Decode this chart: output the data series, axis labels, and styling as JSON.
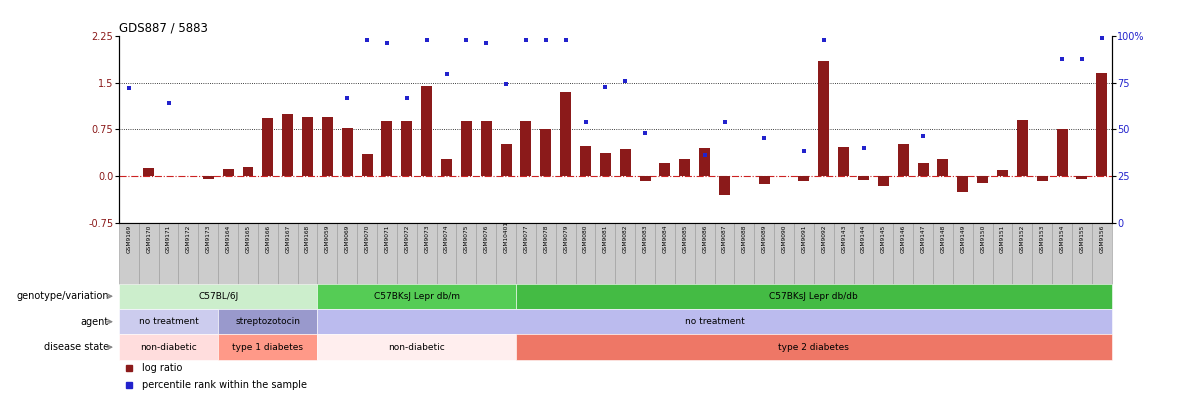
{
  "title": "GDS887 / 5883",
  "samples": [
    "GSM9169",
    "GSM9170",
    "GSM9171",
    "GSM9172",
    "GSM9173",
    "GSM9164",
    "GSM9165",
    "GSM9166",
    "GSM9167",
    "GSM9168",
    "GSM9059",
    "GSM9069",
    "GSM9070",
    "GSM9071",
    "GSM9072",
    "GSM9073",
    "GSM9074",
    "GSM9075",
    "GSM9076",
    "GSM10401",
    "GSM9077",
    "GSM9078",
    "GSM9079",
    "GSM9080",
    "GSM9081",
    "GSM9082",
    "GSM9083",
    "GSM9084",
    "GSM9085",
    "GSM9086",
    "GSM9087",
    "GSM9088",
    "GSM9089",
    "GSM9090",
    "GSM9091",
    "GSM9092",
    "GSM9143",
    "GSM9144",
    "GSM9145",
    "GSM9146",
    "GSM9147",
    "GSM9148",
    "GSM9149",
    "GSM9150",
    "GSM9151",
    "GSM9152",
    "GSM9153",
    "GSM9154",
    "GSM9155",
    "GSM9156"
  ],
  "log_ratio": [
    0.0,
    0.13,
    0.0,
    0.0,
    -0.05,
    0.12,
    0.15,
    0.93,
    1.0,
    0.95,
    0.95,
    0.78,
    0.35,
    0.88,
    0.88,
    1.45,
    0.28,
    0.88,
    0.88,
    0.52,
    0.88,
    0.75,
    1.35,
    0.48,
    0.38,
    0.43,
    -0.08,
    0.22,
    0.27,
    0.45,
    -0.3,
    0.0,
    -0.12,
    0.0,
    -0.08,
    1.85,
    0.47,
    -0.06,
    -0.15,
    0.52,
    0.22,
    0.28,
    -0.25,
    -0.1,
    0.1,
    0.9,
    -0.08,
    0.75,
    -0.05,
    1.65
  ],
  "percentile_rank_left": [
    1.42,
    null,
    1.18,
    null,
    null,
    null,
    null,
    null,
    null,
    null,
    null,
    1.25,
    2.18,
    2.14,
    1.25,
    2.18,
    1.63,
    2.18,
    2.14,
    1.48,
    2.18,
    2.18,
    2.18,
    0.87,
    1.43,
    1.53,
    0.69,
    null,
    null,
    0.34,
    0.87,
    null,
    0.61,
    null,
    0.41,
    2.18,
    null,
    0.46,
    null,
    null,
    0.64,
    null,
    null,
    null,
    null,
    null,
    null,
    1.88,
    1.88,
    2.22
  ],
  "ylim_left": [
    -0.75,
    2.25
  ],
  "ylim_right": [
    0,
    100
  ],
  "yticks_left": [
    -0.75,
    0.0,
    0.75,
    1.5,
    2.25
  ],
  "yticks_right": [
    0,
    25,
    50,
    75,
    100
  ],
  "hlines": [
    0.75,
    1.5
  ],
  "bar_color": "#8B1A1A",
  "scatter_color": "#2222CC",
  "zero_line_color": "#CC2222",
  "sample_box_color": "#CCCCCC",
  "sample_box_edge": "#999999",
  "genotype_groups": [
    {
      "label": "C57BL/6J",
      "start": 0,
      "end": 10,
      "color": "#CCEECC"
    },
    {
      "label": "C57BKsJ Lepr db/m",
      "start": 10,
      "end": 20,
      "color": "#55CC55"
    },
    {
      "label": "C57BKsJ Lepr db/db",
      "start": 20,
      "end": 50,
      "color": "#44BB44"
    }
  ],
  "agent_groups": [
    {
      "label": "no treatment",
      "start": 0,
      "end": 5,
      "color": "#CCCCEE"
    },
    {
      "label": "streptozotocin",
      "start": 5,
      "end": 10,
      "color": "#9999CC"
    },
    {
      "label": "no treatment",
      "start": 10,
      "end": 50,
      "color": "#BBBBEE"
    }
  ],
  "disease_groups": [
    {
      "label": "non-diabetic",
      "start": 0,
      "end": 5,
      "color": "#FFDDDD"
    },
    {
      "label": "type 1 diabetes",
      "start": 5,
      "end": 10,
      "color": "#FF9988"
    },
    {
      "label": "non-diabetic",
      "start": 10,
      "end": 20,
      "color": "#FFEEEE"
    },
    {
      "label": "type 2 diabetes",
      "start": 20,
      "end": 50,
      "color": "#EE7766"
    }
  ],
  "legend_bar_label": "log ratio",
  "legend_scatter_label": "percentile rank within the sample"
}
